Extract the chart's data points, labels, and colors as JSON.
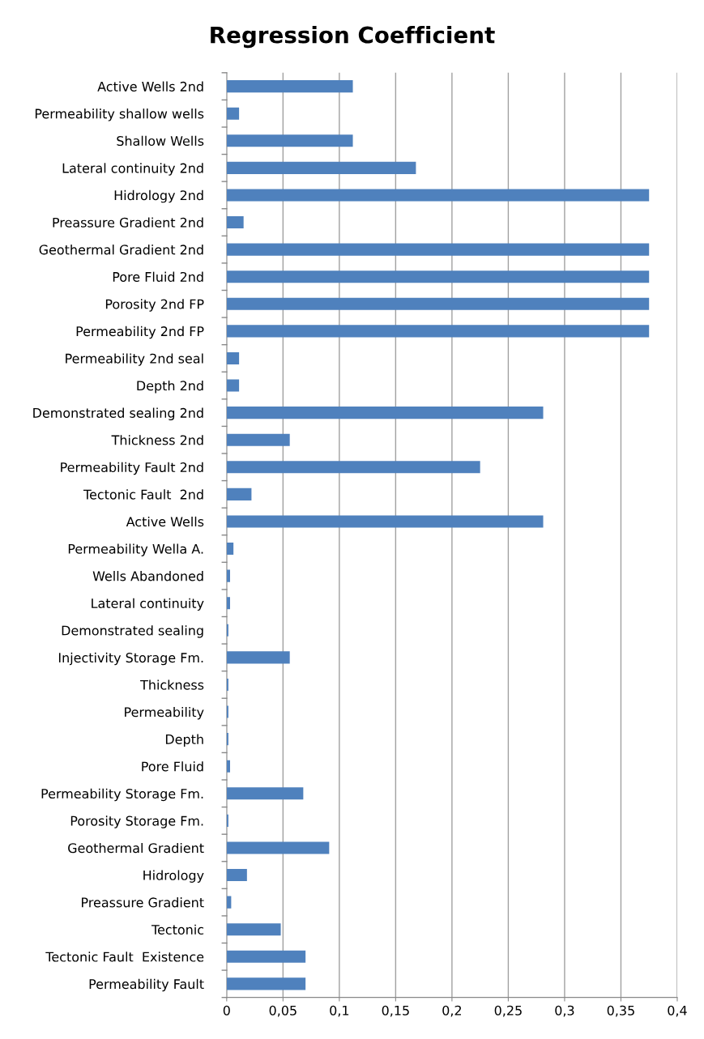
{
  "chart_data": {
    "type": "bar",
    "orientation": "horizontal",
    "title": "Regression Coefficient",
    "categories": [
      "Active Wells 2nd",
      "Permeability shallow wells",
      "Shallow Wells",
      "Lateral continuity 2nd",
      "Hidrology 2nd",
      "Preassure Gradient 2nd",
      "Geothermal Gradient 2nd",
      "Pore Fluid 2nd",
      "Porosity 2nd FP",
      "Permeability 2nd FP",
      "Permeability 2nd seal",
      "Depth 2nd",
      "Demonstrated sealing 2nd",
      "Thickness 2nd",
      "Permeability Fault 2nd",
      "Tectonic Fault  2nd",
      "Active Wells",
      "Permeability Wella A.",
      "Wells Abandoned",
      "Lateral continuity",
      "Demonstrated sealing",
      "Injectivity Storage Fm.",
      "Thickness",
      "Permeability",
      "Depth",
      "Pore Fluid",
      "Permeability Storage Fm.",
      "Porosity Storage Fm.",
      "Geothermal Gradient",
      "Hidrology",
      "Preassure Gradient",
      "Tectonic",
      "Tectonic Fault  Existence",
      "Permeability Fault"
    ],
    "values": [
      0.112,
      0.011,
      0.112,
      0.168,
      0.375,
      0.015,
      0.375,
      0.375,
      0.375,
      0.375,
      0.011,
      0.011,
      0.281,
      0.056,
      0.225,
      0.022,
      0.281,
      0.006,
      0.003,
      0.003,
      0.0015,
      0.056,
      0.0015,
      0.0015,
      0.0015,
      0.003,
      0.068,
      0.0015,
      0.091,
      0.018,
      0.004,
      0.048,
      0.07,
      0.07
    ],
    "color": "#4f81bd",
    "xlim": [
      0,
      0.4
    ],
    "xticks": [
      0,
      {
        "value": 0.05,
        "label": "0,05"
      },
      {
        "value": 0.1,
        "label": "0,1"
      },
      {
        "value": 0.15,
        "label": "0,15"
      },
      {
        "value": 0.2,
        "label": "0,2"
      },
      {
        "value": 0.25,
        "label": "0,25"
      },
      {
        "value": 0.3,
        "label": "0,3"
      },
      {
        "value": 0.35,
        "label": "0,35"
      },
      {
        "value": 0.4,
        "label": "0,4"
      }
    ],
    "grid": "x",
    "legend": false
  }
}
